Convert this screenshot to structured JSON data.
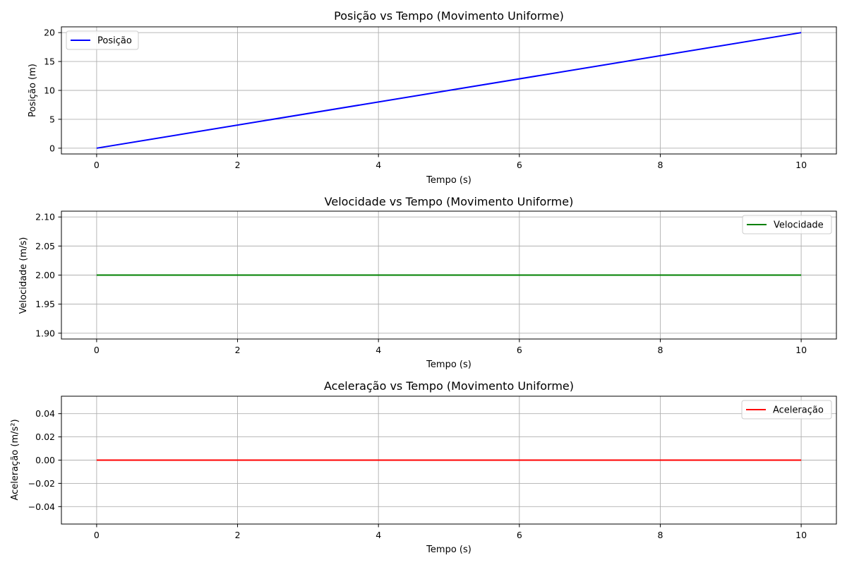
{
  "chart_data": [
    {
      "type": "line",
      "title": "Posição vs Tempo (Movimento Uniforme)",
      "xlabel": "Tempo (s)",
      "ylabel": "Posição (m)",
      "x": [
        0,
        10
      ],
      "series": [
        {
          "name": "Posição",
          "values": [
            0,
            20
          ],
          "color": "#0000ff"
        }
      ],
      "xlim": [
        -0.5,
        10.5
      ],
      "ylim": [
        -1,
        21
      ],
      "xticks": [
        0,
        2,
        4,
        6,
        8,
        10
      ],
      "yticks": [
        0,
        5,
        10,
        15,
        20
      ],
      "xtick_labels": [
        "0",
        "2",
        "4",
        "6",
        "8",
        "10"
      ],
      "ytick_labels": [
        "0",
        "5",
        "10",
        "15",
        "20"
      ],
      "grid": true,
      "legend_loc": "upper-left"
    },
    {
      "type": "line",
      "title": "Velocidade vs Tempo (Movimento Uniforme)",
      "xlabel": "Tempo (s)",
      "ylabel": "Velocidade (m/s)",
      "x": [
        0,
        10
      ],
      "series": [
        {
          "name": "Velocidade",
          "values": [
            2,
            2
          ],
          "color": "#008000"
        }
      ],
      "xlim": [
        -0.5,
        10.5
      ],
      "ylim": [
        1.89,
        2.11
      ],
      "xticks": [
        0,
        2,
        4,
        6,
        8,
        10
      ],
      "yticks": [
        1.9,
        1.95,
        2.0,
        2.05,
        2.1
      ],
      "xtick_labels": [
        "0",
        "2",
        "4",
        "6",
        "8",
        "10"
      ],
      "ytick_labels": [
        "1.90",
        "1.95",
        "2.00",
        "2.05",
        "2.10"
      ],
      "grid": true,
      "legend_loc": "upper-right"
    },
    {
      "type": "line",
      "title": "Aceleração vs Tempo (Movimento Uniforme)",
      "xlabel": "Tempo (s)",
      "ylabel": "Aceleração (m/s²)",
      "x": [
        0,
        10
      ],
      "series": [
        {
          "name": "Aceleração",
          "values": [
            0,
            0
          ],
          "color": "#ff0000"
        }
      ],
      "xlim": [
        -0.5,
        10.5
      ],
      "ylim": [
        -0.055,
        0.055
      ],
      "xticks": [
        0,
        2,
        4,
        6,
        8,
        10
      ],
      "yticks": [
        -0.04,
        -0.02,
        0.0,
        0.02,
        0.04
      ],
      "xtick_labels": [
        "0",
        "2",
        "4",
        "6",
        "8",
        "10"
      ],
      "ytick_labels": [
        "−0.04",
        "−0.02",
        "0.00",
        "0.02",
        "0.04"
      ],
      "grid": true,
      "legend_loc": "upper-right"
    }
  ]
}
